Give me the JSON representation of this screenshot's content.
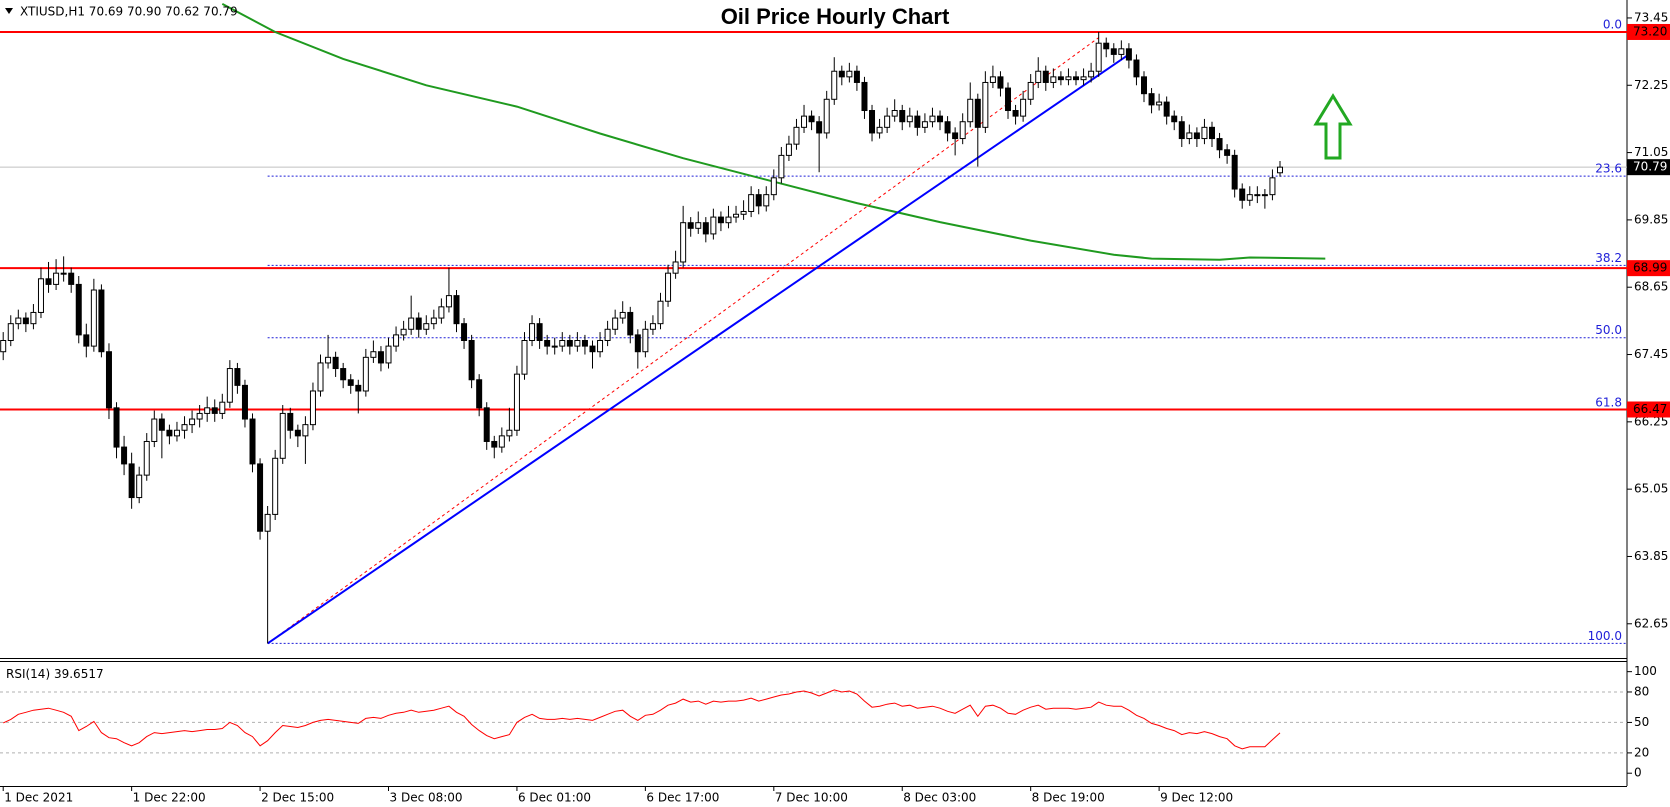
{
  "chart_data": {
    "type": "candlestick",
    "title": "Oil Price Hourly Chart",
    "header": "XTIUSD,H1  70.69 70.90 70.62 70.79",
    "categories": [
      "1 Dec 2021",
      null,
      null,
      null,
      null,
      null,
      null,
      null,
      null,
      null,
      null,
      null,
      null,
      null,
      null,
      null,
      null,
      "1 Dec 22:00",
      null,
      null,
      null,
      null,
      null,
      null,
      null,
      null,
      null,
      null,
      null,
      null,
      null,
      null,
      null,
      null,
      "2 Dec 15:00",
      null,
      null,
      null,
      null,
      null,
      null,
      null,
      null,
      null,
      null,
      null,
      null,
      null,
      null,
      null,
      null,
      "3 Dec 08:00",
      null,
      null,
      null,
      null,
      null,
      null,
      null,
      null,
      null,
      null,
      null,
      null,
      null,
      null,
      null,
      null,
      "6 Dec 01:00",
      null,
      null,
      null,
      null,
      null,
      null,
      null,
      null,
      null,
      null,
      null,
      null,
      null,
      null,
      null,
      null,
      "6 Dec 17:00",
      null,
      null,
      null,
      null,
      null,
      null,
      null,
      null,
      null,
      null,
      null,
      null,
      null,
      null,
      null,
      null,
      "7 Dec 10:00",
      null,
      null,
      null,
      null,
      null,
      null,
      null,
      null,
      null,
      null,
      null,
      null,
      null,
      null,
      null,
      null,
      "8 Dec 03:00",
      null,
      null,
      null,
      null,
      null,
      null,
      null,
      null,
      null,
      null,
      null,
      null,
      null,
      null,
      null,
      null,
      "8 Dec 19:00",
      null,
      null,
      null,
      null,
      null,
      null,
      null,
      null,
      null,
      null,
      null,
      null,
      null,
      null,
      null,
      null,
      "9 Dec 12:00",
      null,
      null,
      null,
      null,
      null,
      null,
      null,
      null,
      null,
      null,
      null,
      null,
      null,
      null,
      null,
      null
    ],
    "candles": [
      [
        67.5,
        67.85,
        67.35,
        67.7
      ],
      [
        67.7,
        68.15,
        67.6,
        68.0
      ],
      [
        68.0,
        68.25,
        67.9,
        68.1
      ],
      [
        68.1,
        68.2,
        67.85,
        68.0
      ],
      [
        68.0,
        68.35,
        67.9,
        68.2
      ],
      [
        68.2,
        69.0,
        68.1,
        68.8
      ],
      [
        68.8,
        69.1,
        68.55,
        68.7
      ],
      [
        68.7,
        69.15,
        68.6,
        68.9
      ],
      [
        68.9,
        69.2,
        68.75,
        68.9
      ],
      [
        68.9,
        69.0,
        68.55,
        68.7
      ],
      [
        68.7,
        68.85,
        67.65,
        67.8
      ],
      [
        67.8,
        68.0,
        67.4,
        67.6
      ],
      [
        67.6,
        68.8,
        67.5,
        68.6
      ],
      [
        68.6,
        68.7,
        67.4,
        67.5
      ],
      [
        67.5,
        67.65,
        66.3,
        66.5
      ],
      [
        66.5,
        66.6,
        65.6,
        65.8
      ],
      [
        65.8,
        66.0,
        65.3,
        65.5
      ],
      [
        65.5,
        65.7,
        64.7,
        64.9
      ],
      [
        64.9,
        65.45,
        64.8,
        65.3
      ],
      [
        65.3,
        66.05,
        65.2,
        65.9
      ],
      [
        65.9,
        66.45,
        65.8,
        66.3
      ],
      [
        66.3,
        66.4,
        65.6,
        66.1
      ],
      [
        66.1,
        66.2,
        65.85,
        66.0
      ],
      [
        66.0,
        66.25,
        65.9,
        66.1
      ],
      [
        66.1,
        66.35,
        65.95,
        66.2
      ],
      [
        66.2,
        66.45,
        66.05,
        66.3
      ],
      [
        66.3,
        66.55,
        66.15,
        66.4
      ],
      [
        66.4,
        66.7,
        66.25,
        66.5
      ],
      [
        66.5,
        66.65,
        66.25,
        66.4
      ],
      [
        66.4,
        66.75,
        66.3,
        66.6
      ],
      [
        66.6,
        67.35,
        66.5,
        67.2
      ],
      [
        67.2,
        67.3,
        66.75,
        66.9
      ],
      [
        66.9,
        67.0,
        66.15,
        66.3
      ],
      [
        66.3,
        66.4,
        65.35,
        65.5
      ],
      [
        65.5,
        65.6,
        64.15,
        64.3
      ],
      [
        64.3,
        64.75,
        62.3,
        64.6
      ],
      [
        64.6,
        65.75,
        64.5,
        65.6
      ],
      [
        65.6,
        66.55,
        65.5,
        66.4
      ],
      [
        66.4,
        66.5,
        65.95,
        66.1
      ],
      [
        66.1,
        66.2,
        65.8,
        66.0
      ],
      [
        66.0,
        66.35,
        65.5,
        66.2
      ],
      [
        66.2,
        66.95,
        66.1,
        66.8
      ],
      [
        66.8,
        67.45,
        66.7,
        67.3
      ],
      [
        67.3,
        67.8,
        67.2,
        67.4
      ],
      [
        67.4,
        67.5,
        67.05,
        67.2
      ],
      [
        67.2,
        67.3,
        66.85,
        67.0
      ],
      [
        67.0,
        67.1,
        66.75,
        66.9
      ],
      [
        66.9,
        67.0,
        66.4,
        66.8
      ],
      [
        66.8,
        67.55,
        66.7,
        67.4
      ],
      [
        67.4,
        67.7,
        67.3,
        67.5
      ],
      [
        67.5,
        67.6,
        67.15,
        67.3
      ],
      [
        67.3,
        67.75,
        67.2,
        67.6
      ],
      [
        67.6,
        67.95,
        67.5,
        67.8
      ],
      [
        67.8,
        68.05,
        67.7,
        67.9
      ],
      [
        67.9,
        68.5,
        67.8,
        68.1
      ],
      [
        68.1,
        68.2,
        67.75,
        67.9
      ],
      [
        67.9,
        68.15,
        67.8,
        68.0
      ],
      [
        68.0,
        68.25,
        67.9,
        68.1
      ],
      [
        68.1,
        68.45,
        68.0,
        68.3
      ],
      [
        68.3,
        69.0,
        68.2,
        68.5
      ],
      [
        68.5,
        68.6,
        67.85,
        68.0
      ],
      [
        68.0,
        68.1,
        67.55,
        67.7
      ],
      [
        67.7,
        67.8,
        66.85,
        67.0
      ],
      [
        67.0,
        67.1,
        66.35,
        66.5
      ],
      [
        66.5,
        66.6,
        65.75,
        65.9
      ],
      [
        65.9,
        66.0,
        65.6,
        65.8
      ],
      [
        65.8,
        66.15,
        65.7,
        66.0
      ],
      [
        66.0,
        66.5,
        65.9,
        66.1
      ],
      [
        66.1,
        67.25,
        66.0,
        67.1
      ],
      [
        67.1,
        67.85,
        67.0,
        67.7
      ],
      [
        67.7,
        68.15,
        67.6,
        68.0
      ],
      [
        68.0,
        68.1,
        67.55,
        67.7
      ],
      [
        67.7,
        67.8,
        67.45,
        67.6
      ],
      [
        67.6,
        67.75,
        67.45,
        67.6
      ],
      [
        67.6,
        67.85,
        67.5,
        67.7
      ],
      [
        67.7,
        67.8,
        67.45,
        67.6
      ],
      [
        67.6,
        67.85,
        67.5,
        67.7
      ],
      [
        67.7,
        67.8,
        67.45,
        67.6
      ],
      [
        67.6,
        67.7,
        67.2,
        67.5
      ],
      [
        67.5,
        67.85,
        67.4,
        67.7
      ],
      [
        67.7,
        68.05,
        67.6,
        67.9
      ],
      [
        67.9,
        68.25,
        67.8,
        68.1
      ],
      [
        68.1,
        68.4,
        68.0,
        68.2
      ],
      [
        68.2,
        68.3,
        67.65,
        67.8
      ],
      [
        67.8,
        67.9,
        67.2,
        67.5
      ],
      [
        67.5,
        68.05,
        67.4,
        67.9
      ],
      [
        67.9,
        68.15,
        67.8,
        68.0
      ],
      [
        68.0,
        68.55,
        67.9,
        68.4
      ],
      [
        68.4,
        69.05,
        68.3,
        68.9
      ],
      [
        68.9,
        69.3,
        68.8,
        69.1
      ],
      [
        69.1,
        70.1,
        69.0,
        69.8
      ],
      [
        69.8,
        69.9,
        69.55,
        69.7
      ],
      [
        69.7,
        70.0,
        69.6,
        69.8
      ],
      [
        69.8,
        69.9,
        69.45,
        69.6
      ],
      [
        69.6,
        70.05,
        69.5,
        69.9
      ],
      [
        69.9,
        70.0,
        69.65,
        69.8
      ],
      [
        69.8,
        70.1,
        69.7,
        69.9
      ],
      [
        69.9,
        70.1,
        69.8,
        69.95
      ],
      [
        69.95,
        70.2,
        69.85,
        70.0
      ],
      [
        70.0,
        70.45,
        69.9,
        70.3
      ],
      [
        70.3,
        70.4,
        69.95,
        70.1
      ],
      [
        70.1,
        70.45,
        70.0,
        70.3
      ],
      [
        70.3,
        70.75,
        70.2,
        70.6
      ],
      [
        70.6,
        71.15,
        70.5,
        71.0
      ],
      [
        71.0,
        71.35,
        70.9,
        71.2
      ],
      [
        71.2,
        71.65,
        71.1,
        71.5
      ],
      [
        71.5,
        71.9,
        71.4,
        71.7
      ],
      [
        71.7,
        71.8,
        71.45,
        71.6
      ],
      [
        71.6,
        71.7,
        70.7,
        71.4
      ],
      [
        71.4,
        72.15,
        71.3,
        72.0
      ],
      [
        72.0,
        72.75,
        71.9,
        72.5
      ],
      [
        72.5,
        72.6,
        72.25,
        72.4
      ],
      [
        72.4,
        72.65,
        72.3,
        72.5
      ],
      [
        72.5,
        72.6,
        72.15,
        72.3
      ],
      [
        72.3,
        72.4,
        71.65,
        71.8
      ],
      [
        71.8,
        71.9,
        71.25,
        71.4
      ],
      [
        71.4,
        71.65,
        71.3,
        71.5
      ],
      [
        71.5,
        71.85,
        71.4,
        71.7
      ],
      [
        71.7,
        72.0,
        71.6,
        71.8
      ],
      [
        71.8,
        71.9,
        71.45,
        71.6
      ],
      [
        71.6,
        71.85,
        71.5,
        71.7
      ],
      [
        71.7,
        71.8,
        71.35,
        71.5
      ],
      [
        71.5,
        71.75,
        71.4,
        71.6
      ],
      [
        71.6,
        71.85,
        71.5,
        71.7
      ],
      [
        71.7,
        71.8,
        71.45,
        71.6
      ],
      [
        71.6,
        71.7,
        71.25,
        71.4
      ],
      [
        71.4,
        71.5,
        71.0,
        71.3
      ],
      [
        71.3,
        71.75,
        71.2,
        71.6
      ],
      [
        71.6,
        72.3,
        71.5,
        72.0
      ],
      [
        72.0,
        72.1,
        70.8,
        71.5
      ],
      [
        71.5,
        72.5,
        71.4,
        72.3
      ],
      [
        72.3,
        72.6,
        72.2,
        72.4
      ],
      [
        72.4,
        72.5,
        72.05,
        72.2
      ],
      [
        72.2,
        72.3,
        71.65,
        71.8
      ],
      [
        71.8,
        71.9,
        71.55,
        71.7
      ],
      [
        71.7,
        72.15,
        71.6,
        72.0
      ],
      [
        72.0,
        72.45,
        71.9,
        72.3
      ],
      [
        72.3,
        72.75,
        72.2,
        72.5
      ],
      [
        72.5,
        72.6,
        72.15,
        72.3
      ],
      [
        72.3,
        72.55,
        72.2,
        72.4
      ],
      [
        72.4,
        72.5,
        72.25,
        72.35
      ],
      [
        72.35,
        72.55,
        72.25,
        72.4
      ],
      [
        72.4,
        72.5,
        72.25,
        72.35
      ],
      [
        72.35,
        72.55,
        72.25,
        72.4
      ],
      [
        72.4,
        72.65,
        72.3,
        72.5
      ],
      [
        72.5,
        73.2,
        72.4,
        73.0
      ],
      [
        73.0,
        73.1,
        72.75,
        72.9
      ],
      [
        72.9,
        73.0,
        72.65,
        72.8
      ],
      [
        72.8,
        73.05,
        72.7,
        72.9
      ],
      [
        72.9,
        73.0,
        72.55,
        72.7
      ],
      [
        72.7,
        72.8,
        72.25,
        72.4
      ],
      [
        72.4,
        72.5,
        71.95,
        72.1
      ],
      [
        72.1,
        72.2,
        71.75,
        71.9
      ],
      [
        71.9,
        72.1,
        71.8,
        71.95
      ],
      [
        71.95,
        72.05,
        71.55,
        71.7
      ],
      [
        71.7,
        71.8,
        71.45,
        71.6
      ],
      [
        71.6,
        71.7,
        71.15,
        71.3
      ],
      [
        71.3,
        71.55,
        71.2,
        71.4
      ],
      [
        71.4,
        71.5,
        71.15,
        71.3
      ],
      [
        71.3,
        71.65,
        71.2,
        71.5
      ],
      [
        71.5,
        71.6,
        71.15,
        71.3
      ],
      [
        71.3,
        71.4,
        70.95,
        71.1
      ],
      [
        71.1,
        71.2,
        70.85,
        71.0
      ],
      [
        71.0,
        71.1,
        70.25,
        70.4
      ],
      [
        70.4,
        70.5,
        70.05,
        70.2
      ],
      [
        70.2,
        70.45,
        70.1,
        70.3
      ],
      [
        70.3,
        70.45,
        70.15,
        70.3
      ],
      [
        70.3,
        70.4,
        70.05,
        70.3
      ],
      [
        70.3,
        70.75,
        70.2,
        70.6
      ],
      [
        70.69,
        70.9,
        70.62,
        70.79
      ]
    ],
    "up_color": "#ffffff",
    "down_color": "#000000",
    "ylim": [
      62.04,
      73.77
    ],
    "yticks": [
      73.45,
      72.25,
      71.05,
      69.85,
      68.65,
      67.45,
      66.25,
      65.05,
      63.85,
      62.65
    ],
    "ma": {
      "color": "#1f9a1f",
      "x": [
        29,
        36,
        45,
        56,
        68,
        79,
        90,
        102,
        113,
        124,
        136,
        147,
        152,
        161,
        165,
        175
      ],
      "values": [
        73.7,
        73.2,
        72.72,
        72.25,
        71.87,
        71.39,
        70.95,
        70.53,
        70.15,
        69.81,
        69.48,
        69.23,
        69.16,
        69.14,
        69.18,
        69.16
      ]
    },
    "level_color": "#ff0000",
    "levels": [
      {
        "value": 73.2,
        "label": "73.20"
      },
      68.99,
      66.47
    ],
    "current_price": 70.79,
    "fib": {
      "color": "#1f1fd8",
      "start_x": 35,
      "levels": [
        {
          "label": "0.0",
          "price": 73.2
        },
        {
          "label": "23.6",
          "price": 70.63
        },
        {
          "label": "38.2",
          "price": 69.04
        },
        {
          "label": "50.0",
          "price": 67.75
        },
        {
          "label": "61.8",
          "price": 66.46
        },
        {
          "label": "100.0",
          "price": 62.3
        }
      ]
    },
    "trendlines": [
      {
        "color": "#ff0000",
        "dashed": true,
        "x": [
          35,
          145
        ],
        "y": [
          62.3,
          73.1
        ]
      },
      {
        "color": "#0000ff",
        "dashed": false,
        "x": [
          35,
          149
        ],
        "y": [
          62.3,
          72.8
        ]
      }
    ],
    "rsi": {
      "label": "RSI(14)",
      "color": "#ff0000",
      "ylim": [
        -12.6,
        110.5
      ],
      "yticks": [
        100,
        80,
        50,
        20,
        0
      ],
      "levels": [
        80,
        50,
        20
      ],
      "values": [
        49.5,
        53,
        58,
        60,
        62,
        63,
        64,
        62,
        60,
        56,
        42,
        46,
        51,
        40,
        35,
        34,
        30,
        27,
        30,
        36,
        40,
        39,
        40,
        41,
        42,
        41,
        42,
        43,
        43,
        44,
        50,
        47,
        40,
        36,
        27,
        32,
        40,
        47,
        46,
        45,
        47,
        50,
        52,
        53,
        52,
        51,
        50,
        49,
        54,
        55,
        54,
        57,
        59,
        60,
        62,
        60,
        61,
        62,
        64,
        66,
        60,
        56,
        48,
        42,
        37,
        34,
        36,
        38,
        50,
        55,
        58,
        54,
        53,
        53,
        54,
        53,
        54,
        53,
        52,
        55,
        58,
        61,
        62,
        56,
        52,
        57,
        58,
        62,
        67,
        69,
        73,
        70,
        71,
        68,
        71,
        70,
        71,
        71,
        72,
        74,
        71,
        73,
        75,
        77,
        78,
        80,
        81,
        79,
        76,
        79,
        82,
        80,
        81,
        78,
        71,
        65,
        66,
        68,
        69,
        66,
        67,
        64,
        65,
        66,
        64,
        61,
        59,
        63,
        67,
        56,
        66,
        67,
        64,
        59,
        58,
        62,
        65,
        67,
        63,
        64,
        64,
        64,
        63,
        64,
        65,
        70,
        67,
        66,
        66,
        62,
        57,
        54,
        49,
        47,
        44,
        42,
        38,
        40,
        39,
        41,
        39,
        36,
        34,
        27,
        24,
        26,
        26,
        26,
        33,
        39.6517
      ]
    }
  }
}
